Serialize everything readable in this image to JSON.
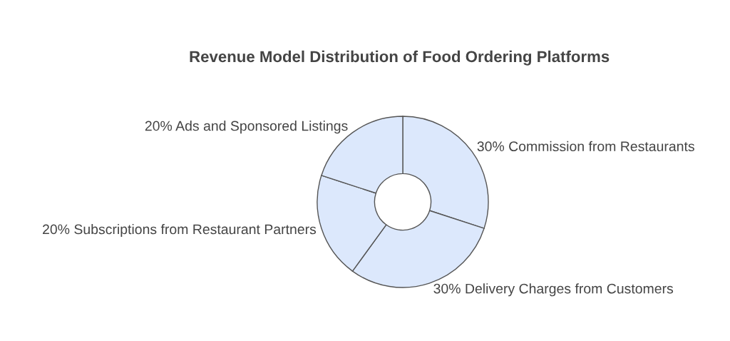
{
  "chart_data": {
    "type": "donut",
    "title": "Revenue Model Distribution of Food Ordering Platforms",
    "categories": [
      "Commission from Restaurants",
      "Delivery Charges from Customers",
      "Subscriptions from Restaurant Partners",
      "Ads and Sponsored Listings"
    ],
    "values": [
      30,
      30,
      20,
      20
    ],
    "value_labels": [
      "30%",
      "30%",
      "20%",
      "20%"
    ],
    "colors": [
      "#dce8fc",
      "#dce8fc",
      "#dce8fc",
      "#dce8fc"
    ],
    "legend": false
  }
}
